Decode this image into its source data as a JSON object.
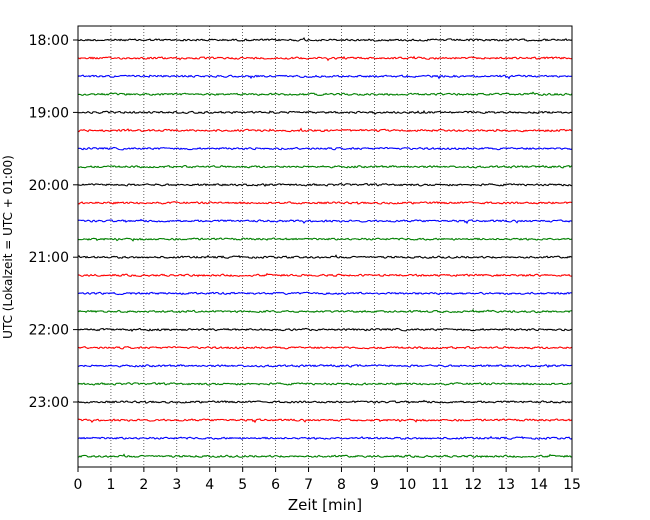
{
  "chart_data": {
    "type": "line",
    "xlabel": "Zeit  [min]",
    "ylabel": "UTC (Lokalzeit = UTC + 01:00)",
    "xlim": [
      0,
      15
    ],
    "x_ticks": [
      "0",
      "1",
      "2",
      "3",
      "4",
      "5",
      "6",
      "7",
      "8",
      "9",
      "10",
      "11",
      "12",
      "13",
      "14",
      "15"
    ],
    "y_tick_labels": [
      "18:00",
      "19:00",
      "20:00",
      "21:00",
      "22:00",
      "23:00"
    ],
    "trace_interval_min": 15,
    "trace_count": 24,
    "start_time": "18:00",
    "colors": [
      "#000000",
      "#ff0000",
      "#0000ff",
      "#008000"
    ],
    "grid": "vertical dotted lines at each minute",
    "legend": "none"
  }
}
